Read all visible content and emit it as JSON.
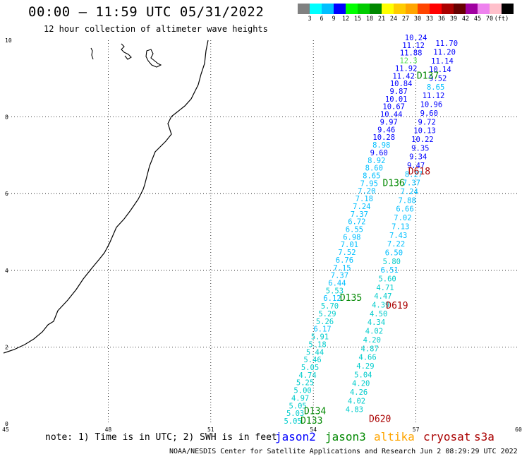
{
  "header": {
    "title": "00:00 – 11:59 UTC 05/31/2022",
    "subtitle": "12 hour collection of altimeter wave heights"
  },
  "legend": {
    "colors": [
      "#808080",
      "#00ffff",
      "#00bfff",
      "#0000ff",
      "#00ff00",
      "#00cc00",
      "#008800",
      "#ffff00",
      "#ffcc00",
      "#ffa500",
      "#ff4500",
      "#ff0000",
      "#aa0000",
      "#660000",
      "#a000a0",
      "#ee82ee",
      "#ffc0cb",
      "#000000"
    ],
    "labels": [
      "3",
      "6",
      "9",
      "12",
      "15",
      "18",
      "21",
      "24",
      "27",
      "30",
      "33",
      "36",
      "39",
      "42",
      "45",
      "70",
      "(ft)"
    ]
  },
  "chart_data": {
    "type": "scatter",
    "x_range": [
      45,
      60
    ],
    "y_range": [
      0,
      10
    ],
    "x_ticks": [
      "45",
      "48",
      "51",
      "54",
      "57",
      "60"
    ],
    "y_ticks": [
      "0",
      "2",
      "4",
      "6",
      "8",
      "10"
    ],
    "grid": true,
    "units": "ft",
    "tracks": [
      {
        "name": "D134",
        "satellite": "jason3",
        "label_pos": [
          54.05,
          0.25
        ],
        "values": [
          "5.05",
          "5.03",
          "5.05",
          "4.97",
          "5.00",
          "5.25",
          "4.74",
          "5.05",
          "5.46",
          "5.44",
          "5.18",
          "5.91",
          "6.17",
          "5.26",
          "5.29",
          "5.70",
          "6.12",
          "5.53",
          "6.44",
          "7.37",
          "7.15",
          "6.76",
          "7.52",
          "7.01",
          "6.98",
          "6.55",
          "6.72",
          "7.37",
          "7.24",
          "7.18",
          "7.20",
          "7.95",
          "8.65",
          "8.60",
          "8.92",
          "9.60",
          "8.98",
          "10.28",
          "9.46",
          "9.97",
          "10.44",
          "10.67",
          "10.01",
          "9.87",
          "10.84",
          "11.42",
          "11.92",
          "12.3",
          "11.88",
          "11.12",
          "10.24"
        ],
        "start": [
          53.4,
          0.0
        ],
        "end": [
          57.0,
          10.0
        ]
      },
      {
        "name": "D135",
        "satellite": "jason3",
        "label_pos": [
          55.1,
          3.2
        ],
        "values": [
          "4.83",
          "4.02",
          "4.26",
          "4.20",
          "5.04",
          "4.29",
          "4.66",
          "4.87",
          "4.20",
          "4.02",
          "4.34",
          "4.50",
          "4.39",
          "4.47",
          "4.71",
          "5.60",
          "6.51",
          "5.80",
          "6.50",
          "7.22",
          "7.43",
          "7.13",
          "7.02",
          "6.66",
          "7.88",
          "7.24",
          "7.37",
          "8.27",
          "9.47",
          "9.34",
          "9.35",
          "10.22",
          "10.13",
          "9.72",
          "9.60",
          "10.96",
          "11.12",
          "8.65",
          "9.52",
          "10.14",
          "11.14",
          "11.20",
          "11.70"
        ],
        "start": [
          55.2,
          0.3
        ],
        "end": [
          57.9,
          9.85
        ]
      },
      {
        "name": "D136",
        "satellite": "jason3",
        "label_pos": [
          56.35,
          6.2
        ]
      },
      {
        "name": "D137",
        "satellite": "jason3",
        "label_pos": [
          57.35,
          9.0
        ]
      },
      {
        "name": "D133",
        "satellite": "jason3",
        "label_pos": [
          53.95,
          0.0
        ]
      },
      {
        "name": "D618",
        "satellite": "cryosat",
        "label_pos": [
          57.1,
          6.5
        ]
      },
      {
        "name": "D619",
        "satellite": "cryosat",
        "label_pos": [
          56.45,
          3.0
        ]
      },
      {
        "name": "D620",
        "satellite": "cryosat",
        "label_pos": [
          55.95,
          0.05
        ]
      }
    ]
  },
  "note": "note: 1) Time is in UTC; 2) SWH is in feet",
  "satellites": [
    {
      "name": "jason2",
      "color": "#0000ff"
    },
    {
      "name": "jason3",
      "color": "#008800"
    },
    {
      "name": "altika",
      "color": "#ffa500"
    },
    {
      "name": "cryosat",
      "color": "#aa0000"
    },
    {
      "name": "s3a",
      "color": "#aa0000"
    }
  ],
  "footer": "NOAA/NESDIS Center for Satellite Applications and Research   Jun  2 08:29:29 UTC 2022"
}
